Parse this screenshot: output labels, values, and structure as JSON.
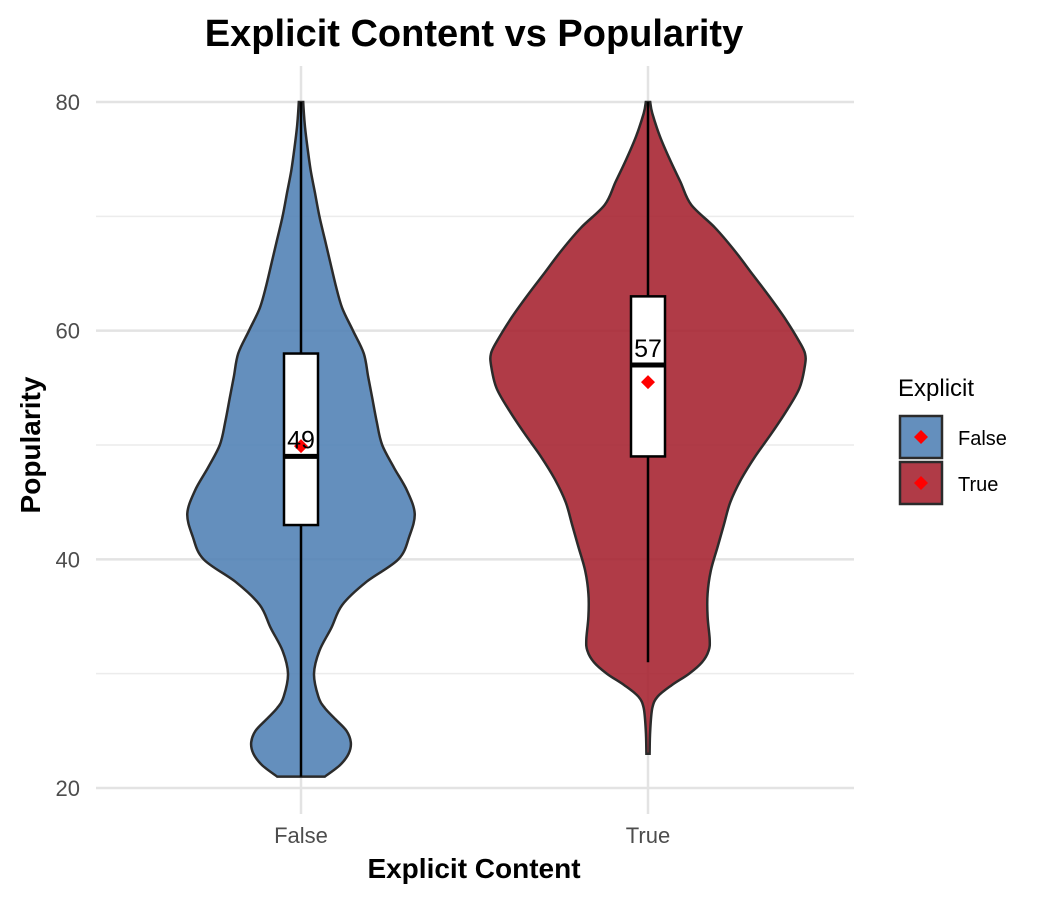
{
  "chart_data": {
    "type": "violin",
    "title": "Explicit Content vs Popularity",
    "xlabel": "Explicit Content",
    "ylabel": "Popularity",
    "categories": [
      "False",
      "True"
    ],
    "ylim": [
      20,
      80
    ],
    "y_ticks": [
      20,
      40,
      60,
      80
    ],
    "grid": true,
    "legend": {
      "title": "Explicit",
      "position": "right",
      "entries": [
        "False",
        "True"
      ]
    },
    "colors": {
      "False": "#4F7FB4",
      "True": "#A5202E",
      "mean_marker": "#FF0000"
    },
    "series": [
      {
        "name": "False",
        "min": 21,
        "max": 80,
        "q1": 43,
        "median": 49,
        "q3": 58,
        "whisker_low": 21,
        "whisker_high": 80,
        "mean": 49.9,
        "median_label": "49",
        "density": [
          [
            21,
            0.22
          ],
          [
            22,
            0.36
          ],
          [
            23,
            0.44
          ],
          [
            24,
            0.46
          ],
          [
            25,
            0.42
          ],
          [
            26,
            0.32
          ],
          [
            27,
            0.22
          ],
          [
            28,
            0.16
          ],
          [
            30,
            0.12
          ],
          [
            32,
            0.17
          ],
          [
            34,
            0.28
          ],
          [
            36,
            0.38
          ],
          [
            38,
            0.6
          ],
          [
            40,
            0.9
          ],
          [
            42,
            1.0
          ],
          [
            44,
            1.05
          ],
          [
            46,
            0.98
          ],
          [
            48,
            0.86
          ],
          [
            50,
            0.75
          ],
          [
            52,
            0.7
          ],
          [
            54,
            0.66
          ],
          [
            56,
            0.62
          ],
          [
            58,
            0.58
          ],
          [
            60,
            0.48
          ],
          [
            62,
            0.38
          ],
          [
            64,
            0.32
          ],
          [
            66,
            0.27
          ],
          [
            68,
            0.22
          ],
          [
            70,
            0.17
          ],
          [
            72,
            0.13
          ],
          [
            74,
            0.09
          ],
          [
            76,
            0.06
          ],
          [
            78,
            0.035
          ],
          [
            80,
            0.02
          ]
        ]
      },
      {
        "name": "True",
        "min": 23,
        "max": 80,
        "q1": 49,
        "median": 57,
        "q3": 63,
        "whisker_low": 31,
        "whisker_high": 80,
        "mean": 55.5,
        "median_label": "57",
        "density": [
          [
            23,
            0.015
          ],
          [
            25,
            0.02
          ],
          [
            27,
            0.04
          ],
          [
            28,
            0.09
          ],
          [
            29,
            0.22
          ],
          [
            30,
            0.38
          ],
          [
            31,
            0.5
          ],
          [
            32,
            0.56
          ],
          [
            33,
            0.57
          ],
          [
            35,
            0.55
          ],
          [
            37,
            0.55
          ],
          [
            39,
            0.58
          ],
          [
            41,
            0.64
          ],
          [
            43,
            0.7
          ],
          [
            45,
            0.76
          ],
          [
            47,
            0.86
          ],
          [
            49,
            0.99
          ],
          [
            51,
            1.14
          ],
          [
            53,
            1.28
          ],
          [
            55,
            1.4
          ],
          [
            57,
            1.45
          ],
          [
            58,
            1.45
          ],
          [
            59,
            1.4
          ],
          [
            61,
            1.27
          ],
          [
            63,
            1.12
          ],
          [
            65,
            0.96
          ],
          [
            67,
            0.8
          ],
          [
            69,
            0.62
          ],
          [
            71,
            0.4
          ],
          [
            73,
            0.3
          ],
          [
            75,
            0.2
          ],
          [
            77,
            0.11
          ],
          [
            79,
            0.04
          ],
          [
            80,
            0.02
          ]
        ]
      }
    ]
  }
}
